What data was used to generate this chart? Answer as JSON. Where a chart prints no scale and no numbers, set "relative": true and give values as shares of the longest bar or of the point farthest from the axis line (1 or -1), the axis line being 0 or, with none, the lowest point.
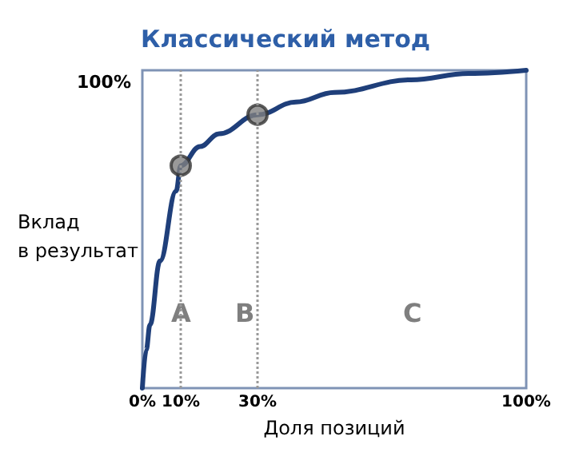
{
  "chart_data": {
    "type": "line",
    "title": "Классический метод",
    "xlabel": "Доля позиций",
    "ylabel": "Вклад\nв результат",
    "relative": true,
    "xlim": [
      0,
      100
    ],
    "xticks": [
      {
        "value": 0,
        "label": "0%"
      },
      {
        "value": 10,
        "label": "10%"
      },
      {
        "value": 30,
        "label": "30%"
      },
      {
        "value": 100,
        "label": "100%"
      }
    ],
    "series": [
      {
        "color": "#1f3f7a",
        "marker": "none",
        "x": [
          0,
          1,
          2,
          4.6,
          8.8,
          10,
          15,
          20,
          30,
          40,
          50,
          70,
          85,
          100
        ],
        "values": [
          0,
          0.12,
          0.2,
          0.4,
          0.62,
          0.7,
          0.76,
          0.8,
          0.86,
          0.9,
          0.93,
          0.97,
          0.99,
          1
        ]
      },
      {
        "type": "scatter",
        "color": "#7f7f7f",
        "marker": "circle",
        "x": [
          10,
          30
        ],
        "values": [
          0.7,
          0.86
        ]
      }
    ],
    "ref_lines": [
      {
        "axis": "x",
        "value": 10,
        "color": "#999999",
        "line_style": "dotted"
      },
      {
        "axis": "x",
        "value": 30,
        "color": "#999999",
        "line_style": "dotted"
      }
    ],
    "annotations": [
      "100%",
      "A",
      "B",
      "C"
    ],
    "grid": false
  }
}
